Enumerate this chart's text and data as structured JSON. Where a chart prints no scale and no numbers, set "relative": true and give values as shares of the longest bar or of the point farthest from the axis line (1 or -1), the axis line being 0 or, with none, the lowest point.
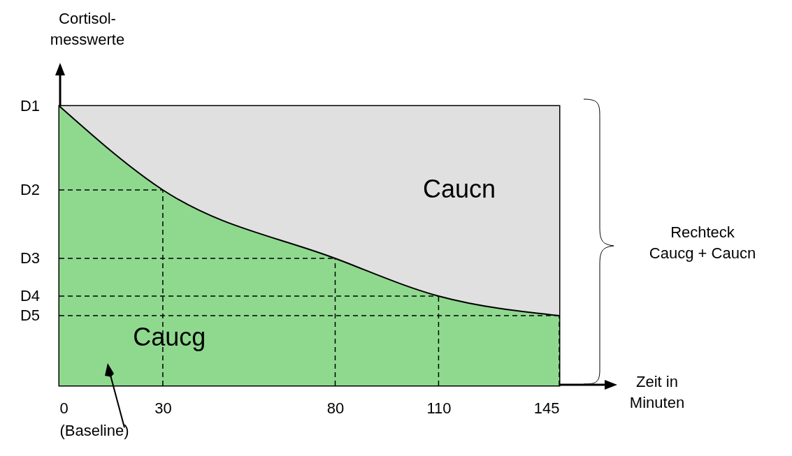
{
  "chart_data": {
    "type": "area",
    "stacked": true,
    "x": [
      0,
      30,
      80,
      110,
      145
    ],
    "xlim": [
      0,
      145
    ],
    "relative": true,
    "grid": false,
    "xticks": [
      {
        "value": 0,
        "label": "0\n(Baseline)"
      },
      30,
      80,
      110,
      145
    ],
    "xlabel": "Zeit in\nMinuten",
    "ylabel": "Cortisol-\nmesswerte",
    "legend": false,
    "ref_lines": [
      {
        "axis": "y",
        "value": 0.7,
        "label": "D2",
        "color": "#000000",
        "line_style": "dashed"
      },
      {
        "axis": "y",
        "value": 0.455,
        "label": "D3",
        "color": "#000000",
        "line_style": "dashed"
      },
      {
        "axis": "y",
        "value": 0.32,
        "label": "D4",
        "color": "#000000",
        "line_style": "dashed"
      },
      {
        "axis": "y",
        "value": 0.25,
        "label": "D5",
        "color": "#000000",
        "line_style": "dashed"
      },
      {
        "axis": "x",
        "value": 30,
        "color": "#000000",
        "line_style": "dashed"
      },
      {
        "axis": "x",
        "value": 80,
        "color": "#000000",
        "line_style": "dashed"
      },
      {
        "axis": "x",
        "value": 110,
        "color": "#000000",
        "line_style": "dashed"
      },
      {
        "axis": "x",
        "value": 145,
        "color": "#000000",
        "line_style": "dashed"
      }
    ],
    "series": [
      {
        "name": "Caucg",
        "color": "#8fd98f",
        "values": [
          1,
          0.7,
          0.455,
          0.32,
          0.25
        ]
      },
      {
        "name": "Caucn",
        "color": "#e0e0e0",
        "values": [
          0,
          0.3,
          0.545,
          0.68,
          0.75
        ]
      }
    ],
    "annotations": [
      {
        "text": "D1",
        "x": 0,
        "y": 1
      },
      "Rechteck\nCaucg + Caucn"
    ]
  }
}
